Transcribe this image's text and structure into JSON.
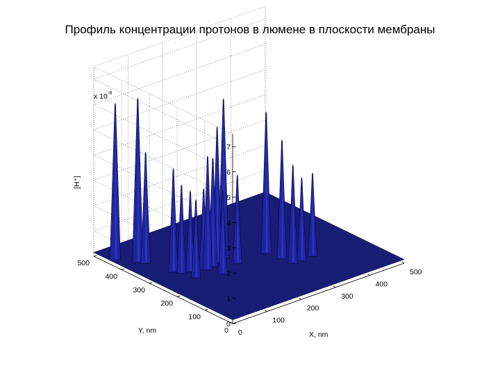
{
  "chart_data": {
    "type": "surface",
    "title": "Профиль концентрации протонов в люмене в плоскости мембраны",
    "xlabel": "X, nm",
    "ylabel": "Y, nm",
    "zlabel": "[H⁺]",
    "z_multiplier": "x 10",
    "z_multiplier_exponent": "-8",
    "xlim": [
      0,
      500
    ],
    "ylim": [
      0,
      500
    ],
    "zlim": [
      0,
      7.5
    ],
    "x_ticks": [
      "0",
      "100",
      "200",
      "300",
      "400",
      "500"
    ],
    "y_ticks": [
      "0",
      "100",
      "200",
      "300",
      "400",
      "500"
    ],
    "z_ticks": [
      "0",
      "1",
      "2",
      "3",
      "4",
      "5",
      "6",
      "7"
    ],
    "baseline_z": 0.15,
    "peaks": [
      {
        "x": 14,
        "y": 440,
        "z": 6.3
      },
      {
        "x": 44,
        "y": 396,
        "z": 6.6
      },
      {
        "x": 54,
        "y": 380,
        "z": 4.5
      },
      {
        "x": 70,
        "y": 300,
        "z": 4.2
      },
      {
        "x": 80,
        "y": 283,
        "z": 3.6
      },
      {
        "x": 100,
        "y": 276,
        "z": 3.3
      },
      {
        "x": 88,
        "y": 241,
        "z": 3.2
      },
      {
        "x": 130,
        "y": 265,
        "z": 3.3
      },
      {
        "x": 136,
        "y": 258,
        "z": 4.6
      },
      {
        "x": 156,
        "y": 264,
        "z": 4.4
      },
      {
        "x": 175,
        "y": 272,
        "z": 5.5
      },
      {
        "x": 204,
        "y": 285,
        "z": 6.4
      },
      {
        "x": 148,
        "y": 218,
        "z": 3.4
      },
      {
        "x": 208,
        "y": 240,
        "z": 3.6
      },
      {
        "x": 292,
        "y": 240,
        "z": 5.7
      },
      {
        "x": 300,
        "y": 193,
        "z": 4.8
      },
      {
        "x": 302,
        "y": 156,
        "z": 4.0
      },
      {
        "x": 326,
        "y": 154,
        "z": 3.4
      },
      {
        "x": 360,
        "y": 157,
        "z": 3.4
      }
    ],
    "surface_color": "#1a1f7a",
    "grid": true
  }
}
